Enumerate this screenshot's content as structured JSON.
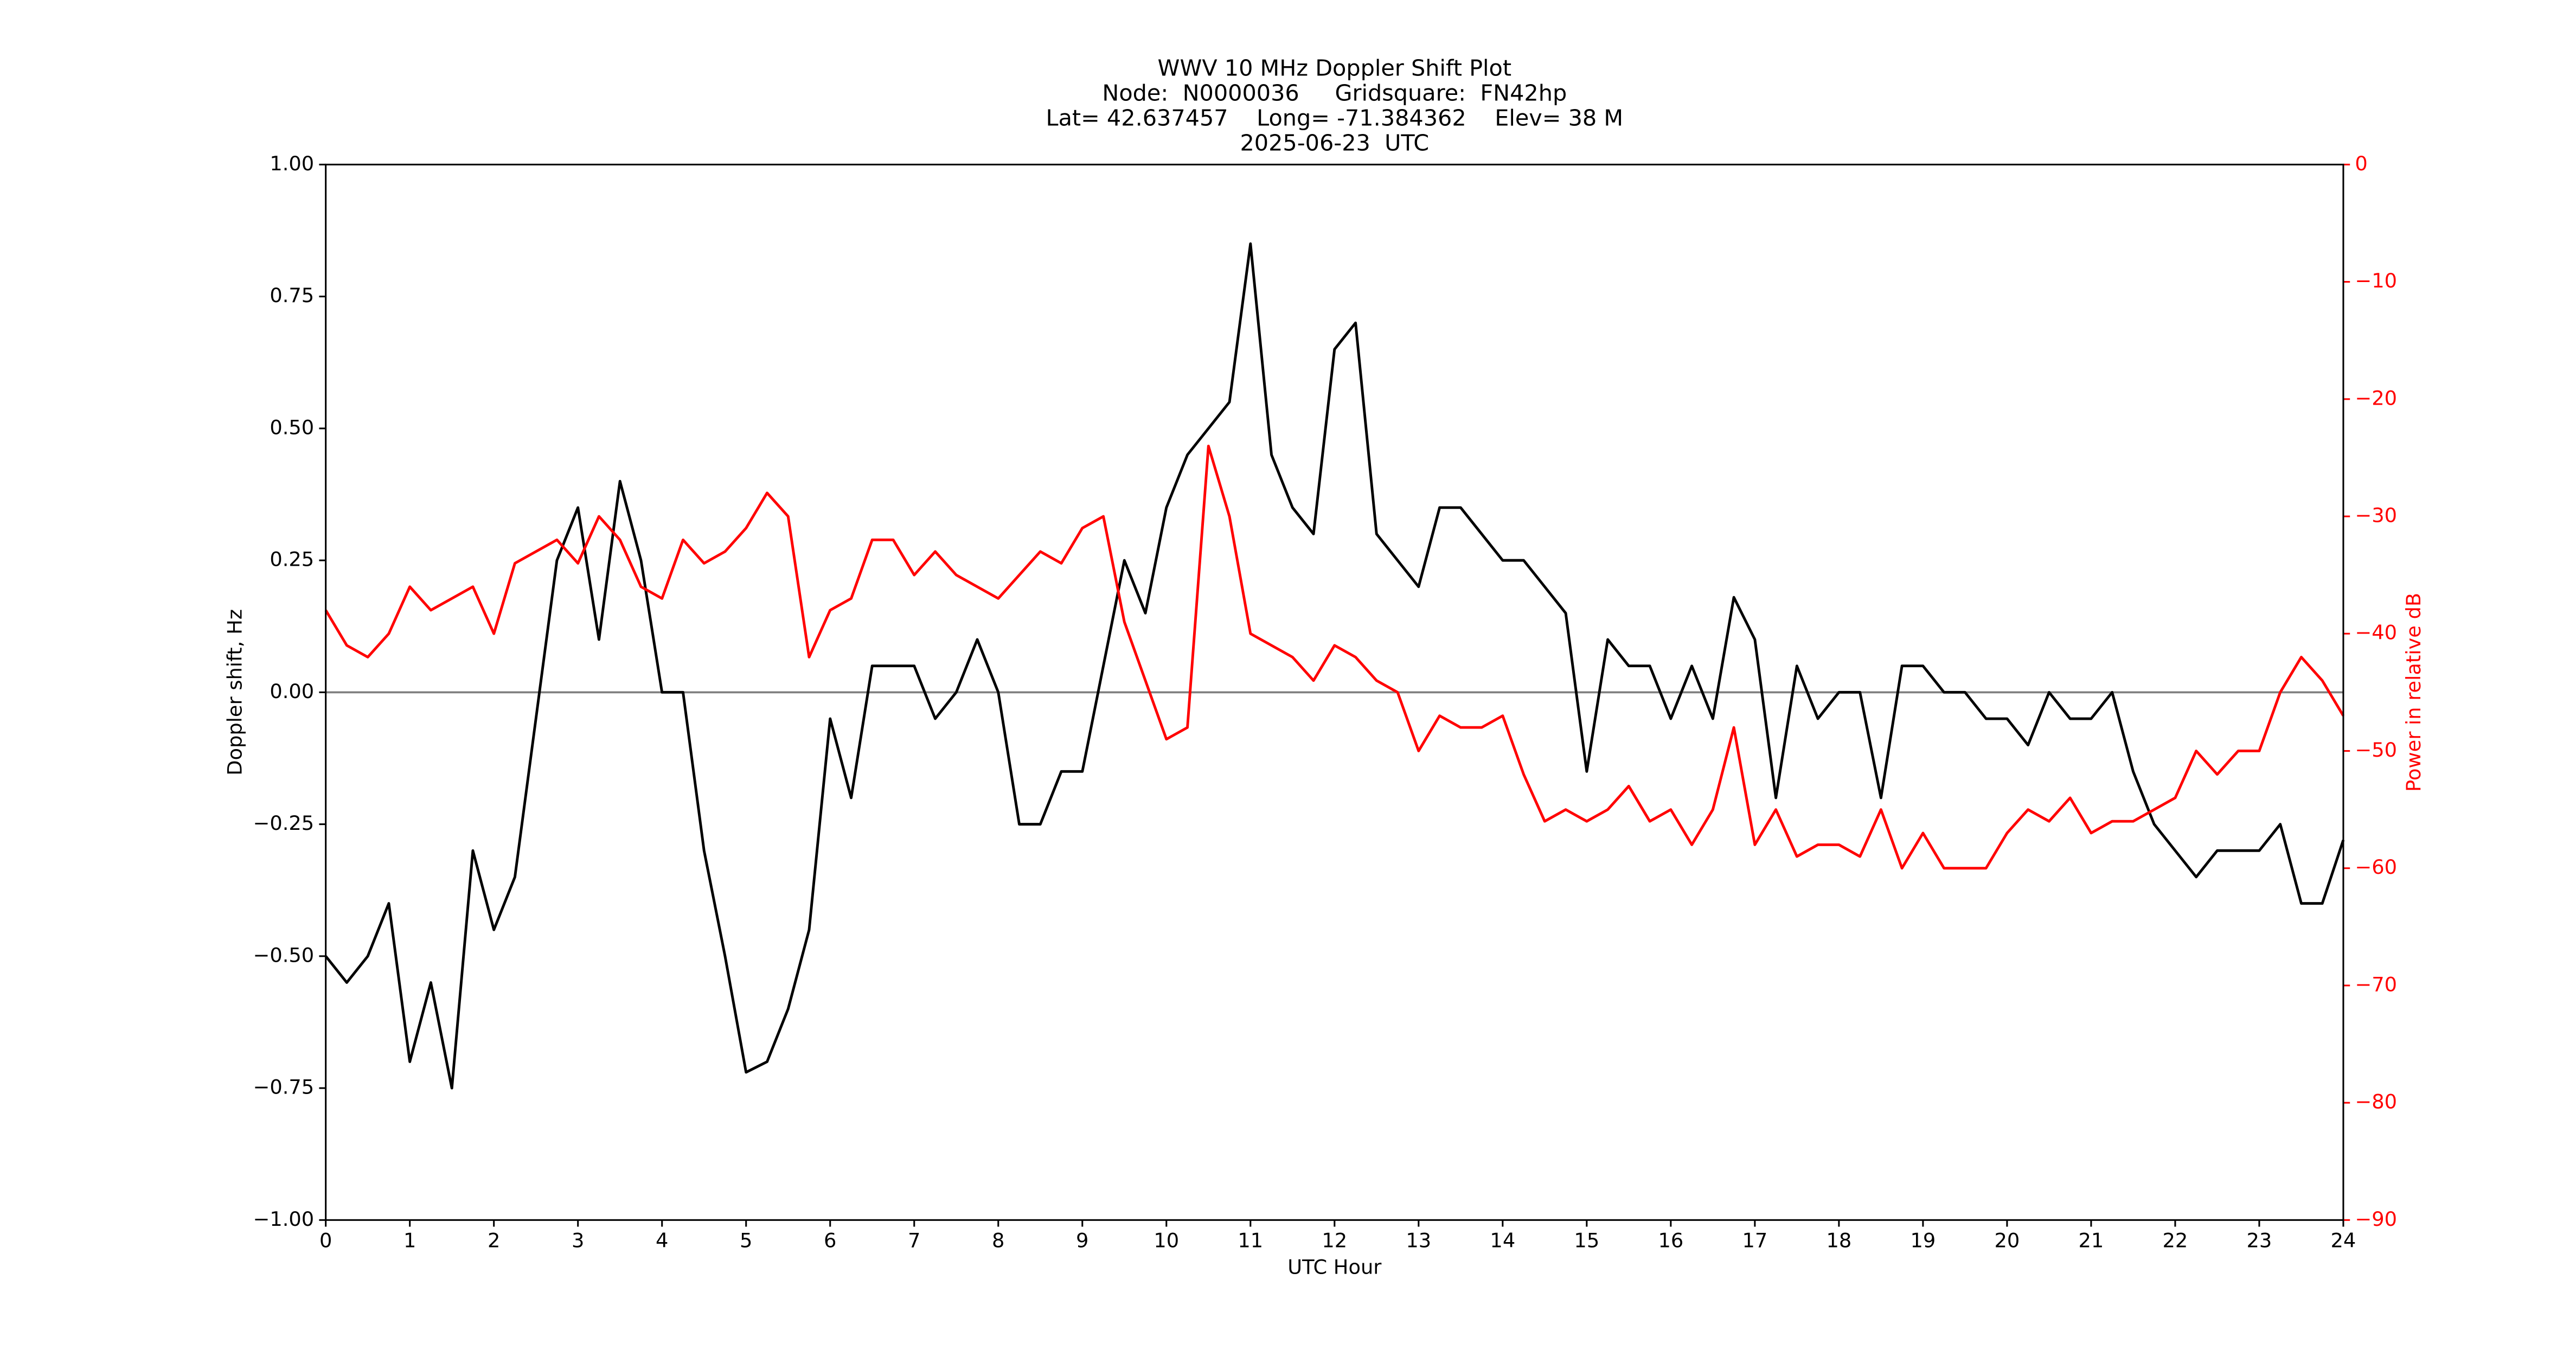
{
  "chart_data": {
    "type": "line",
    "title": [
      "WWV 10 MHz Doppler Shift Plot",
      "Node:  N0000036     Gridsquare:  FN42hp",
      "Lat= 42.637457    Long= -71.384362    Elev= 38 M",
      "2025-06-23  UTC"
    ],
    "xlabel": "UTC Hour",
    "ylabel": "Doppler shift, Hz",
    "y2label": "Power in relative dB",
    "x": [
      0,
      0.25,
      0.5,
      0.75,
      1,
      1.25,
      1.5,
      1.75,
      2,
      2.25,
      2.5,
      2.75,
      3,
      3.25,
      3.5,
      3.75,
      4,
      4.25,
      4.5,
      4.75,
      5,
      5.25,
      5.5,
      5.75,
      6,
      6.25,
      6.5,
      6.75,
      7,
      7.25,
      7.5,
      7.75,
      8,
      8.25,
      8.5,
      8.75,
      9,
      9.25,
      9.5,
      9.75,
      10,
      10.25,
      10.5,
      10.75,
      11,
      11.25,
      11.5,
      11.75,
      12,
      12.25,
      12.5,
      12.75,
      13,
      13.25,
      13.5,
      13.75,
      14,
      14.25,
      14.5,
      14.75,
      15,
      15.25,
      15.5,
      15.75,
      16,
      16.25,
      16.5,
      16.75,
      17,
      17.25,
      17.5,
      17.75,
      18,
      18.25,
      18.5,
      18.75,
      19,
      19.25,
      19.5,
      19.75,
      20,
      20.25,
      20.5,
      20.75,
      21,
      21.25,
      21.5,
      21.75,
      22,
      22.25,
      22.5,
      22.75,
      23,
      23.25,
      23.5,
      23.75,
      24
    ],
    "series": [
      {
        "color": "#000000",
        "values": [
          -0.5,
          -0.55,
          -0.5,
          -0.4,
          -0.7,
          -0.55,
          -0.75,
          -0.3,
          -0.45,
          -0.35,
          -0.05,
          0.25,
          0.35,
          0.1,
          0.4,
          0.25,
          0,
          0,
          -0.3,
          -0.5,
          -0.72,
          -0.7,
          -0.6,
          -0.45,
          -0.05,
          -0.2,
          0.05,
          0.05,
          0.05,
          -0.05,
          0,
          0.1,
          0,
          -0.25,
          -0.25,
          -0.15,
          -0.15,
          0.05,
          0.25,
          0.15,
          0.35,
          0.45,
          0.5,
          0.55,
          0.85,
          0.45,
          0.35,
          0.3,
          0.65,
          0.7,
          0.3,
          0.25,
          0.2,
          0.35,
          0.35,
          0.3,
          0.25,
          0.25,
          0.2,
          0.15,
          -0.15,
          0.1,
          0.05,
          0.05,
          -0.05,
          0.05,
          -0.05,
          0.18,
          0.1,
          -0.2,
          0.05,
          -0.05,
          0,
          0,
          -0.2,
          0.05,
          0.05,
          0,
          0,
          -0.05,
          -0.05,
          -0.1,
          0,
          -0.05,
          -0.05,
          0,
          -0.15,
          -0.25,
          -0.3,
          -0.35,
          -0.3,
          -0.3,
          -0.3,
          -0.25,
          -0.4,
          -0.4,
          -0.28
        ]
      },
      {
        "color": "#ff0000",
        "axis": "y2",
        "values": [
          -38,
          -41,
          -42,
          -40,
          -36,
          -38,
          -37,
          -36,
          -40,
          -34,
          -33,
          -32,
          -34,
          -30,
          -32,
          -36,
          -37,
          -32,
          -34,
          -33,
          -31,
          -28,
          -30,
          -42,
          -38,
          -37,
          -32,
          -32,
          -35,
          -33,
          -35,
          -36,
          -37,
          -35,
          -33,
          -34,
          -31,
          -30,
          -39,
          -44,
          -49,
          -48,
          -24,
          -30,
          -40,
          -41,
          -42,
          -44,
          -41,
          -42,
          -44,
          -45,
          -50,
          -47,
          -48,
          -48,
          -47,
          -52,
          -56,
          -55,
          -56,
          -55,
          -53,
          -56,
          -55,
          -58,
          -55,
          -48,
          -58,
          -55,
          -59,
          -58,
          -58,
          -59,
          -55,
          -60,
          -57,
          -60,
          -60,
          -60,
          -57,
          -55,
          -56,
          -54,
          -57,
          -56,
          -56,
          -55,
          -54,
          -50,
          -52,
          -50,
          -50,
          -45,
          -42,
          -44,
          -47
        ]
      }
    ],
    "xlim": [
      0,
      24
    ],
    "xticks": [
      0,
      1,
      2,
      3,
      4,
      5,
      6,
      7,
      8,
      9,
      10,
      11,
      12,
      13,
      14,
      15,
      16,
      17,
      18,
      19,
      20,
      21,
      22,
      23,
      24
    ],
    "ylim": [
      -1,
      1
    ],
    "yticks": [
      {
        "value": -1,
        "label": "−1.00"
      },
      {
        "value": -0.75,
        "label": "−0.75"
      },
      {
        "value": -0.5,
        "label": "−0.50"
      },
      {
        "value": -0.25,
        "label": "−0.25"
      },
      {
        "value": 0,
        "label": "0.00"
      },
      {
        "value": 0.25,
        "label": "0.25"
      },
      {
        "value": 0.5,
        "label": "0.50"
      },
      {
        "value": 0.75,
        "label": "0.75"
      },
      {
        "value": 1,
        "label": "1.00"
      }
    ],
    "y2lim": [
      -90,
      0
    ],
    "y2ticks": [
      {
        "value": -90,
        "label": "−90"
      },
      {
        "value": -80,
        "label": "−80"
      },
      {
        "value": -70,
        "label": "−70"
      },
      {
        "value": -60,
        "label": "−60"
      },
      {
        "value": -50,
        "label": "−50"
      },
      {
        "value": -40,
        "label": "−40"
      },
      {
        "value": -30,
        "label": "−30"
      },
      {
        "value": -20,
        "label": "−20"
      },
      {
        "value": -10,
        "label": "−10"
      },
      0
    ],
    "y2color": "#ff0000",
    "axhline": 0,
    "axhline_color": "#808080"
  }
}
